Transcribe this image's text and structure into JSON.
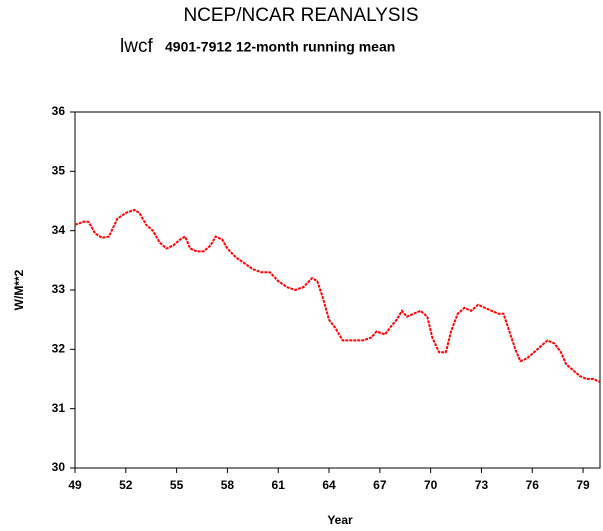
{
  "chart_data": {
    "type": "line",
    "title": "NCEP/NCAR REANALYSIS",
    "subtitle_variable": "lwcf",
    "subtitle": "4901-7912 12-month running mean",
    "x_label": "Year",
    "y_label": "W/M**2",
    "x": [
      49.0,
      49.5,
      49.8,
      50.2,
      50.6,
      51.0,
      51.5,
      52.0,
      52.5,
      52.8,
      53.2,
      53.6,
      54.0,
      54.4,
      54.8,
      55.2,
      55.5,
      55.8,
      56.2,
      56.6,
      57.0,
      57.3,
      57.7,
      58.0,
      58.5,
      59.0,
      59.5,
      60.0,
      60.5,
      61.0,
      61.5,
      62.0,
      62.5,
      63.0,
      63.3,
      63.6,
      64.0,
      64.4,
      64.8,
      65.2,
      65.6,
      66.0,
      66.5,
      66.8,
      67.3,
      67.7,
      68.0,
      68.3,
      68.6,
      69.0,
      69.4,
      69.8,
      70.1,
      70.5,
      70.9,
      71.2,
      71.6,
      72.0,
      72.4,
      72.8,
      73.2,
      73.6,
      74.0,
      74.3,
      74.6,
      75.0,
      75.3,
      75.7,
      76.1,
      76.5,
      76.9,
      77.3,
      77.7,
      78.0,
      78.4,
      78.8,
      79.2,
      79.6,
      80.0
    ],
    "values": [
      34.1,
      34.15,
      34.15,
      33.95,
      33.88,
      33.9,
      34.2,
      34.3,
      34.35,
      34.3,
      34.1,
      34.0,
      33.8,
      33.7,
      33.75,
      33.85,
      33.9,
      33.7,
      33.65,
      33.65,
      33.75,
      33.9,
      33.85,
      33.7,
      33.55,
      33.45,
      33.35,
      33.3,
      33.3,
      33.15,
      33.05,
      33.0,
      33.05,
      33.2,
      33.15,
      32.9,
      32.5,
      32.35,
      32.15,
      32.15,
      32.15,
      32.15,
      32.2,
      32.3,
      32.25,
      32.4,
      32.5,
      32.65,
      32.55,
      32.6,
      32.65,
      32.55,
      32.2,
      31.95,
      31.95,
      32.3,
      32.6,
      32.7,
      32.65,
      32.75,
      32.7,
      32.65,
      32.6,
      32.6,
      32.35,
      32.0,
      31.8,
      31.85,
      31.95,
      32.05,
      32.15,
      32.1,
      31.95,
      31.75,
      31.65,
      31.55,
      31.5,
      31.5,
      31.45
    ],
    "color": "#ff0000",
    "xlim": [
      49,
      80
    ],
    "xticks": [
      49,
      52,
      55,
      58,
      61,
      64,
      67,
      70,
      73,
      76,
      79
    ],
    "ylim": [
      30,
      36
    ],
    "yticks": [
      30,
      31,
      32,
      33,
      34,
      35,
      36
    ]
  }
}
